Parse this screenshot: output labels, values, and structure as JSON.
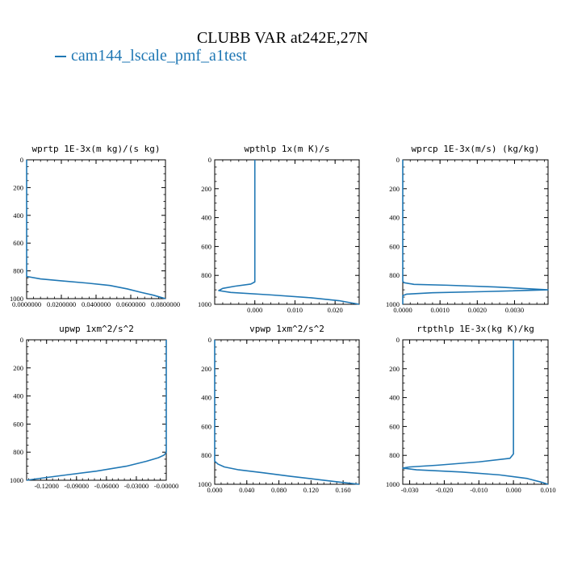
{
  "title": "CLUBB VAR at242E,27N",
  "legend": {
    "label": "cam144_lscale_pmf_a1test",
    "color": "#1f77b4"
  },
  "chart_data": [
    {
      "type": "line",
      "title": "wprtp  1E-3x(m kg)/(s kg)",
      "xlim": [
        0,
        0.08
      ],
      "ylim": [
        1000,
        0
      ],
      "xticks": [
        0,
        0.02,
        0.04,
        0.06,
        0.08
      ],
      "xtick_labels": [
        "0.0000000",
        "0.0200000",
        "0.0400000",
        "0.0600000",
        "0.0800000"
      ],
      "yticks": [
        0,
        200,
        400,
        600,
        800,
        1000
      ],
      "series": [
        {
          "x": [
            0,
            0,
            0,
            0.008,
            0.02,
            0.035,
            0.048,
            0.058,
            0.066,
            0.073,
            0.078,
            0.08
          ],
          "y": [
            0,
            400,
            840,
            858,
            872,
            888,
            905,
            930,
            955,
            975,
            993,
            1000
          ]
        }
      ]
    },
    {
      "type": "line",
      "title": "wpthlp  1x(m K)/s",
      "xlim": [
        -0.01,
        0.026
      ],
      "ylim": [
        1000,
        0
      ],
      "xticks": [
        0,
        0.01,
        0.02
      ],
      "xtick_labels": [
        "0.000",
        "0.010",
        "0.020"
      ],
      "yticks": [
        0,
        200,
        400,
        600,
        800,
        1000
      ],
      "series": [
        {
          "x": [
            0,
            0,
            0,
            0,
            -0.001,
            -0.005,
            -0.008,
            -0.009,
            -0.006,
            0.004,
            0.014,
            0.021,
            0.026
          ],
          "y": [
            0,
            400,
            800,
            845,
            860,
            875,
            890,
            905,
            918,
            935,
            955,
            975,
            1000
          ]
        }
      ]
    },
    {
      "type": "line",
      "title": "wprcp  1E-3x(m/s) (kg/kg)",
      "xlim": [
        0,
        0.0039
      ],
      "ylim": [
        1000,
        0
      ],
      "xticks": [
        0,
        0.001,
        0.002,
        0.003
      ],
      "xtick_labels": [
        "0.0000",
        "0.0010",
        "0.0020",
        "0.0030"
      ],
      "yticks": [
        0,
        200,
        400,
        600,
        800,
        1000
      ],
      "series": [
        {
          "x": [
            0,
            0,
            3e-05,
            0.0003,
            0.0012,
            0.0025,
            0.0039,
            0.0022,
            0.0008,
            0.0001,
            0,
            0
          ],
          "y": [
            0,
            840,
            850,
            862,
            868,
            880,
            900,
            912,
            920,
            930,
            940,
            1000
          ]
        }
      ]
    },
    {
      "type": "line",
      "title": "upwp  1xm^2/s^2",
      "xlim": [
        -0.14,
        0
      ],
      "ylim": [
        1000,
        0
      ],
      "xticks": [
        -0.12,
        -0.09,
        -0.06,
        -0.03,
        0
      ],
      "xtick_labels": [
        "-0.12000",
        "-0.09000",
        "-0.06000",
        "-0.03000",
        "-0.00000"
      ],
      "yticks": [
        0,
        200,
        400,
        600,
        800,
        1000
      ],
      "series": [
        {
          "x": [
            0,
            0,
            0,
            -0.002,
            -0.008,
            -0.02,
            -0.04,
            -0.07,
            -0.1,
            -0.125,
            -0.14
          ],
          "y": [
            0,
            400,
            800,
            820,
            840,
            865,
            900,
            935,
            962,
            985,
            1000
          ]
        }
      ]
    },
    {
      "type": "line",
      "title": "vpwp  1xm^2/s^2",
      "xlim": [
        0,
        0.18
      ],
      "ylim": [
        1000,
        0
      ],
      "xticks": [
        0,
        0.04,
        0.08,
        0.12,
        0.16
      ],
      "xtick_labels": [
        "0.000",
        "0.040",
        "0.080",
        "0.120",
        "0.160"
      ],
      "yticks": [
        0,
        200,
        400,
        600,
        800,
        1000
      ],
      "series": [
        {
          "x": [
            0,
            0,
            0,
            0.004,
            0.012,
            0.03,
            0.06,
            0.095,
            0.13,
            0.16,
            0.18
          ],
          "y": [
            0,
            400,
            840,
            860,
            880,
            900,
            920,
            945,
            968,
            988,
            1000
          ]
        }
      ]
    },
    {
      "type": "line",
      "title": "rtpthlp  1E-3x(kg K)/kg",
      "xlim": [
        -0.032,
        0.01
      ],
      "ylim": [
        1000,
        0
      ],
      "xticks": [
        -0.03,
        -0.02,
        -0.01,
        0,
        0.01
      ],
      "xtick_labels": [
        "-0.030",
        "-0.020",
        "-0.010",
        "0.000",
        "0.010"
      ],
      "yticks": [
        0,
        200,
        400,
        600,
        800,
        1000
      ],
      "series": [
        {
          "x": [
            0,
            0,
            0,
            -0.001,
            -0.01,
            -0.022,
            -0.03,
            -0.032,
            -0.028,
            -0.015,
            -0.004,
            0.004,
            0.008,
            0.01
          ],
          "y": [
            0,
            400,
            790,
            820,
            845,
            868,
            880,
            888,
            900,
            915,
            935,
            960,
            985,
            1000
          ]
        }
      ]
    }
  ]
}
